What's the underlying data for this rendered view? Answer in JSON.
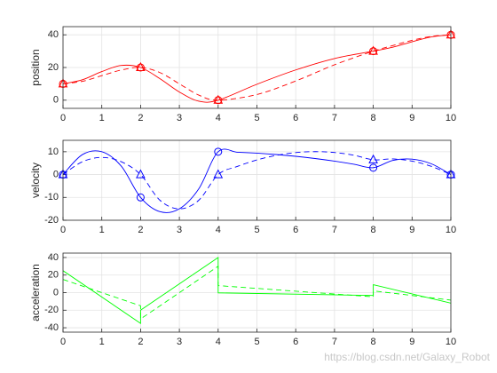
{
  "chart_data": [
    {
      "type": "line",
      "ylabel": "position",
      "xlim": [
        0,
        10
      ],
      "ylim": [
        -5,
        45
      ],
      "xticks": [
        0,
        1,
        2,
        3,
        4,
        5,
        6,
        7,
        8,
        9,
        10
      ],
      "yticks": [
        0,
        20,
        40
      ],
      "grid": true,
      "smooth": true,
      "series": [
        {
          "color": "#ff0000",
          "style": "solid",
          "marker": "none",
          "x": [
            0,
            0.5,
            1,
            1.5,
            2,
            2.5,
            3,
            3.5,
            4,
            5,
            6,
            7,
            8,
            8.5,
            9,
            9.5,
            10
          ],
          "values": [
            10,
            12.5,
            17.5,
            21.25,
            20,
            13.13,
            5,
            -0.63,
            0,
            9.75,
            18.5,
            25.5,
            30,
            32.4,
            35.75,
            38.72,
            40
          ]
        },
        {
          "color": "#ff0000",
          "style": "dashed",
          "marker": "none",
          "x": [
            0,
            0.5,
            1,
            1.5,
            2,
            2.5,
            3,
            3.5,
            4,
            5,
            6,
            7,
            8,
            8.5,
            9,
            9.5,
            10
          ],
          "values": [
            10,
            11.56,
            15,
            18.44,
            20,
            16.88,
            10,
            3.13,
            0,
            3.47,
            11.75,
            21.66,
            30,
            33.39,
            36.63,
            39.05,
            40
          ]
        },
        {
          "color": "#ff0000",
          "style": "none",
          "marker": "circle",
          "x": [
            0,
            2,
            4,
            8,
            10
          ],
          "values": [
            10,
            20,
            0,
            30,
            40
          ]
        },
        {
          "color": "#ff0000",
          "style": "none",
          "marker": "triangle",
          "x": [
            0,
            2,
            4,
            8,
            10
          ],
          "values": [
            10,
            20,
            0,
            30,
            40
          ]
        }
      ]
    },
    {
      "type": "line",
      "ylabel": "velocity",
      "xlim": [
        0,
        10
      ],
      "ylim": [
        -20,
        15
      ],
      "xticks": [
        0,
        1,
        2,
        3,
        4,
        5,
        6,
        7,
        8,
        9,
        10
      ],
      "yticks": [
        -20,
        -10,
        0,
        10
      ],
      "grid": true,
      "smooth": true,
      "series": [
        {
          "color": "#0000ff",
          "style": "solid",
          "marker": "none",
          "x": [
            0,
            0.5,
            1,
            1.5,
            2,
            2.5,
            3,
            3.5,
            4,
            4.5,
            5,
            5.5,
            6,
            6.5,
            7,
            7.5,
            8,
            8.5,
            9,
            9.5,
            10
          ],
          "values": [
            0,
            8.75,
            10,
            3.75,
            -10,
            -16.25,
            -15,
            -6.25,
            10,
            9.78,
            9.38,
            8.78,
            8,
            7.03,
            5.88,
            4.53,
            3,
            6.19,
            6.75,
            4.69,
            0
          ]
        },
        {
          "color": "#0000ff",
          "style": "dashed",
          "marker": "none",
          "x": [
            0,
            0.5,
            1,
            1.5,
            2,
            2.5,
            3,
            3.5,
            4,
            4.5,
            5,
            5.5,
            6,
            6.5,
            7,
            7.5,
            8,
            8.5,
            9,
            9.5,
            10
          ],
          "values": [
            0,
            5.63,
            7.5,
            5.63,
            0,
            -11.25,
            -15,
            -11.25,
            0,
            3.6,
            6.41,
            8.41,
            9.63,
            10.04,
            9.66,
            8.48,
            6.5,
            6.84,
            5.88,
            3.59,
            0
          ]
        },
        {
          "color": "#0000ff",
          "style": "none",
          "marker": "circle",
          "x": [
            0,
            2,
            4,
            8,
            10
          ],
          "values": [
            0,
            -10,
            10,
            3,
            0
          ]
        },
        {
          "color": "#0000ff",
          "style": "none",
          "marker": "triangle",
          "x": [
            0,
            2,
            4,
            8,
            10
          ],
          "values": [
            0,
            0,
            0,
            6.5,
            0
          ]
        }
      ]
    },
    {
      "type": "line",
      "ylabel": "acceleration",
      "xlim": [
        0,
        10
      ],
      "ylim": [
        -45,
        45
      ],
      "xticks": [
        0,
        1,
        2,
        3,
        4,
        5,
        6,
        7,
        8,
        9,
        10
      ],
      "yticks": [
        -40,
        -20,
        0,
        20,
        40
      ],
      "grid": true,
      "smooth": false,
      "series": [
        {
          "color": "#00ff00",
          "style": "solid",
          "marker": "none",
          "x": [
            0,
            2,
            2,
            4,
            4,
            8,
            8,
            10
          ],
          "values": [
            25,
            -35,
            -20,
            40,
            -0.25,
            -3.25,
            9,
            -12
          ]
        },
        {
          "color": "#00ff00",
          "style": "dashed",
          "marker": "none",
          "x": [
            0,
            2,
            2,
            4,
            4,
            8,
            8,
            10
          ],
          "values": [
            15,
            -15,
            -30,
            30,
            8,
            -4.75,
            2,
            -8.5
          ]
        }
      ]
    }
  ],
  "watermark": "https://blog.csdn.net/Galaxy_Robot"
}
